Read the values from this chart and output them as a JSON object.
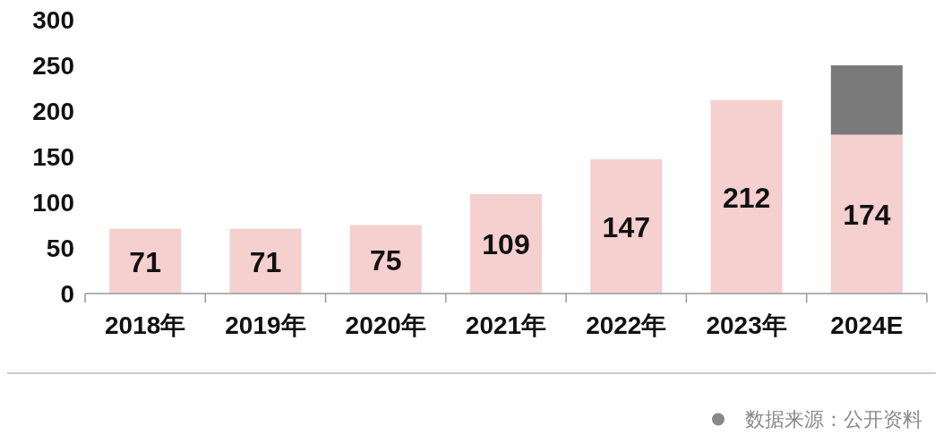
{
  "chart_data": {
    "type": "bar",
    "stacked": true,
    "categories": [
      "2018年",
      "2019年",
      "2020年",
      "2021年",
      "2022年",
      "2023年",
      "2024E"
    ],
    "series": [
      {
        "color": "#f6cfcf",
        "values": [
          71,
          71,
          75,
          109,
          147,
          212,
          174
        ],
        "value_labels": [
          "71",
          "71",
          "75",
          "109",
          "147",
          "212",
          "174"
        ]
      },
      {
        "color": "#7a7a7a",
        "values": [
          null,
          null,
          null,
          null,
          null,
          null,
          76
        ]
      }
    ],
    "ylim": [
      0,
      300
    ],
    "yticks": [
      0,
      50,
      100,
      150,
      200,
      250,
      300
    ],
    "annotations": [
      "数据来源：公开资料"
    ]
  }
}
